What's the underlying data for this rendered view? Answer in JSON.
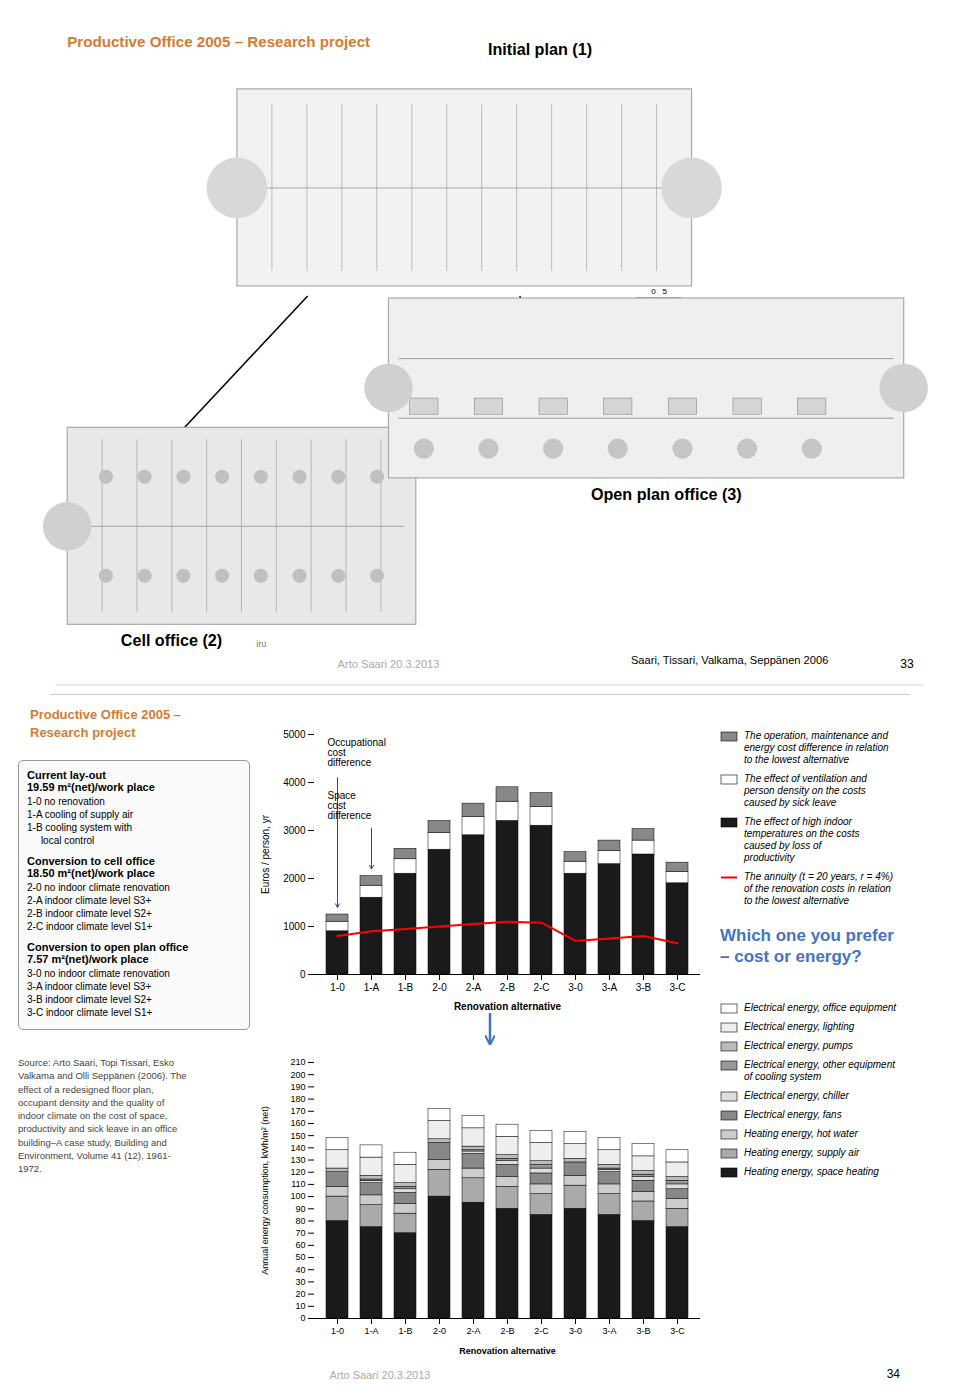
{
  "chart_data": [
    {
      "type": "bar",
      "stacked": true,
      "grid": false,
      "legend": "right",
      "xlabel": "Renovation alternative",
      "ylabel": "Euros / person, yr",
      "categories": [
        "1-0",
        "1-A",
        "1-B",
        "2-0",
        "2-A",
        "2-B",
        "2-C",
        "3-0",
        "3-A",
        "3-B",
        "3-C"
      ],
      "ylim": [
        0,
        5000
      ],
      "yticks": [
        0,
        1000,
        2000,
        3000,
        4000,
        5000
      ],
      "series": [
        {
          "name": "The effect of high indoor\ntemperatures on the costs\ncaused by loss of\nproductivity",
          "color": "#1a1a1a",
          "values": [
            900,
            1600,
            2100,
            2600,
            2900,
            3200,
            3100,
            2100,
            2300,
            2500,
            1900
          ]
        },
        {
          "name": "The effect of ventilation and\nperson density on the costs\ncaused by sick leave",
          "color": "#ffffff",
          "values": [
            200,
            250,
            300,
            350,
            380,
            400,
            390,
            250,
            270,
            290,
            240
          ]
        },
        {
          "name": "The operation, maintenance and\nenergy cost difference in relation\nto the lowest alternative",
          "color": "#888888",
          "values": [
            150,
            200,
            220,
            250,
            280,
            300,
            290,
            200,
            220,
            240,
            190
          ]
        },
        {
          "name": "The annuity (t = 20 years, r = 4%)\nof the renovation costs in relation\nto the lowest alternative",
          "type": "line",
          "color": "#ff0000",
          "values": [
            800,
            900,
            950,
            1000,
            1050,
            1100,
            1080,
            700,
            750,
            800,
            650
          ]
        }
      ],
      "annotations": [
        "Occupational\ncost\ndifference",
        "Space\ncost\ndifference"
      ]
    },
    {
      "type": "bar",
      "stacked": true,
      "grid": false,
      "legend": "right",
      "xlabel": "Renovation alternative",
      "ylabel": "Annual energy consumption, kWh/m² (net)",
      "categories": [
        "1-0",
        "1-A",
        "1-B",
        "2-0",
        "2-A",
        "2-B",
        "2-C",
        "3-0",
        "3-A",
        "3-B",
        "3-C"
      ],
      "ylim": [
        0,
        210
      ],
      "yticks": [
        0,
        10,
        20,
        30,
        40,
        50,
        60,
        70,
        80,
        90,
        100,
        110,
        120,
        130,
        140,
        150,
        160,
        170,
        180,
        190,
        200,
        210
      ],
      "series": [
        {
          "name": "Heating energy, space heating",
          "color": "#1a1a1a",
          "values": [
            80,
            75,
            70,
            100,
            95,
            90,
            85,
            90,
            85,
            80,
            75
          ]
        },
        {
          "name": "Heating energy, supply air",
          "color": "#aaaaaa",
          "values": [
            20,
            18,
            16,
            22,
            20,
            18,
            17,
            19,
            17,
            16,
            15
          ]
        },
        {
          "name": "Heating energy, hot water",
          "color": "#cccccc",
          "values": [
            8,
            8,
            8,
            8,
            8,
            8,
            8,
            8,
            8,
            8,
            8
          ]
        },
        {
          "name": "Electrical energy, fans",
          "color": "#888888",
          "values": [
            12,
            10,
            9,
            14,
            12,
            10,
            9,
            11,
            10,
            9,
            8
          ]
        },
        {
          "name": "Electrical energy, chiller",
          "color": "#dddddd",
          "values": [
            0,
            2,
            3,
            0,
            2,
            3,
            4,
            0,
            2,
            3,
            4
          ]
        },
        {
          "name": "Electrical energy, other equipment\nof cooling system",
          "color": "#999999",
          "values": [
            0,
            1,
            2,
            0,
            1,
            2,
            3,
            0,
            1,
            2,
            3
          ]
        },
        {
          "name": "Electrical energy, pumps",
          "color": "#bbbbbb",
          "values": [
            3,
            3,
            3,
            3,
            3,
            3,
            3,
            3,
            3,
            3,
            3
          ]
        },
        {
          "name": "Electrical energy, lighting",
          "color": "#eeeeee",
          "values": [
            15,
            15,
            15,
            15,
            15,
            15,
            15,
            12,
            12,
            12,
            12
          ]
        },
        {
          "name": "Electrical energy, office equipment",
          "color": "#ffffff",
          "values": [
            10,
            10,
            10,
            10,
            10,
            10,
            10,
            10,
            10,
            10,
            10
          ]
        }
      ]
    }
  ],
  "page": {
    "top": {
      "title": "Productive Office 2005 – Research project",
      "title_color": "#d47c30",
      "labels": [
        "Initial plan (1)",
        "Cell office (2)",
        "Open plan office (3)"
      ],
      "scale_label": "0   5",
      "icon_label": "iru",
      "footer_left": "Arto Saari 20.3.2013",
      "footer_right": "Saari, Tissari, Valkama, Seppänen 2006",
      "page_num": "33"
    },
    "bottom": {
      "title": "Productive Office 2005 –\nResearch project",
      "title_color": "#d47c30",
      "question": "Which one you prefer\n– cost or energy?",
      "question_color": "#4472c4",
      "textbox": [
        {
          "title": "Current lay-out",
          "subtitle": "19.59 m²(net)/work place",
          "lines": [
            "1-0 no renovation",
            "1-A cooling of supply air",
            "1-B cooling system with",
            "     local control"
          ]
        },
        {
          "title": "Conversion to cell office",
          "subtitle": "18.50 m²(net)/work place",
          "lines": [
            "2-0 no indoor climate renovation",
            "2-A indoor climate level S3+",
            "2-B indoor climate level S2+",
            "2-C indoor climate level S1+"
          ]
        },
        {
          "title": "Conversion to open plan office",
          "subtitle": "7.57 m²(net)/work place",
          "lines": [
            "3-0 no indoor climate renovation",
            "3-A indoor climate level S3+",
            "3-B indoor climate level S2+",
            "3-C indoor climate level S1+"
          ]
        }
      ],
      "source": "Source: Arto Saari, Topi Tissari, Esko\nValkama and Olli Seppänen (2006). The\neffect of a redesigned floor plan,\noccupant density and the quality of\nindoor climate on the cost of space,\nproductivity and sick leave in an office\nbuilding–A case study, Building and\nEnvironment, Volume 41 (12), 1961-\n1972.",
      "footer_left": "Arto Saari 20.3.2013",
      "page_num": "34"
    }
  }
}
